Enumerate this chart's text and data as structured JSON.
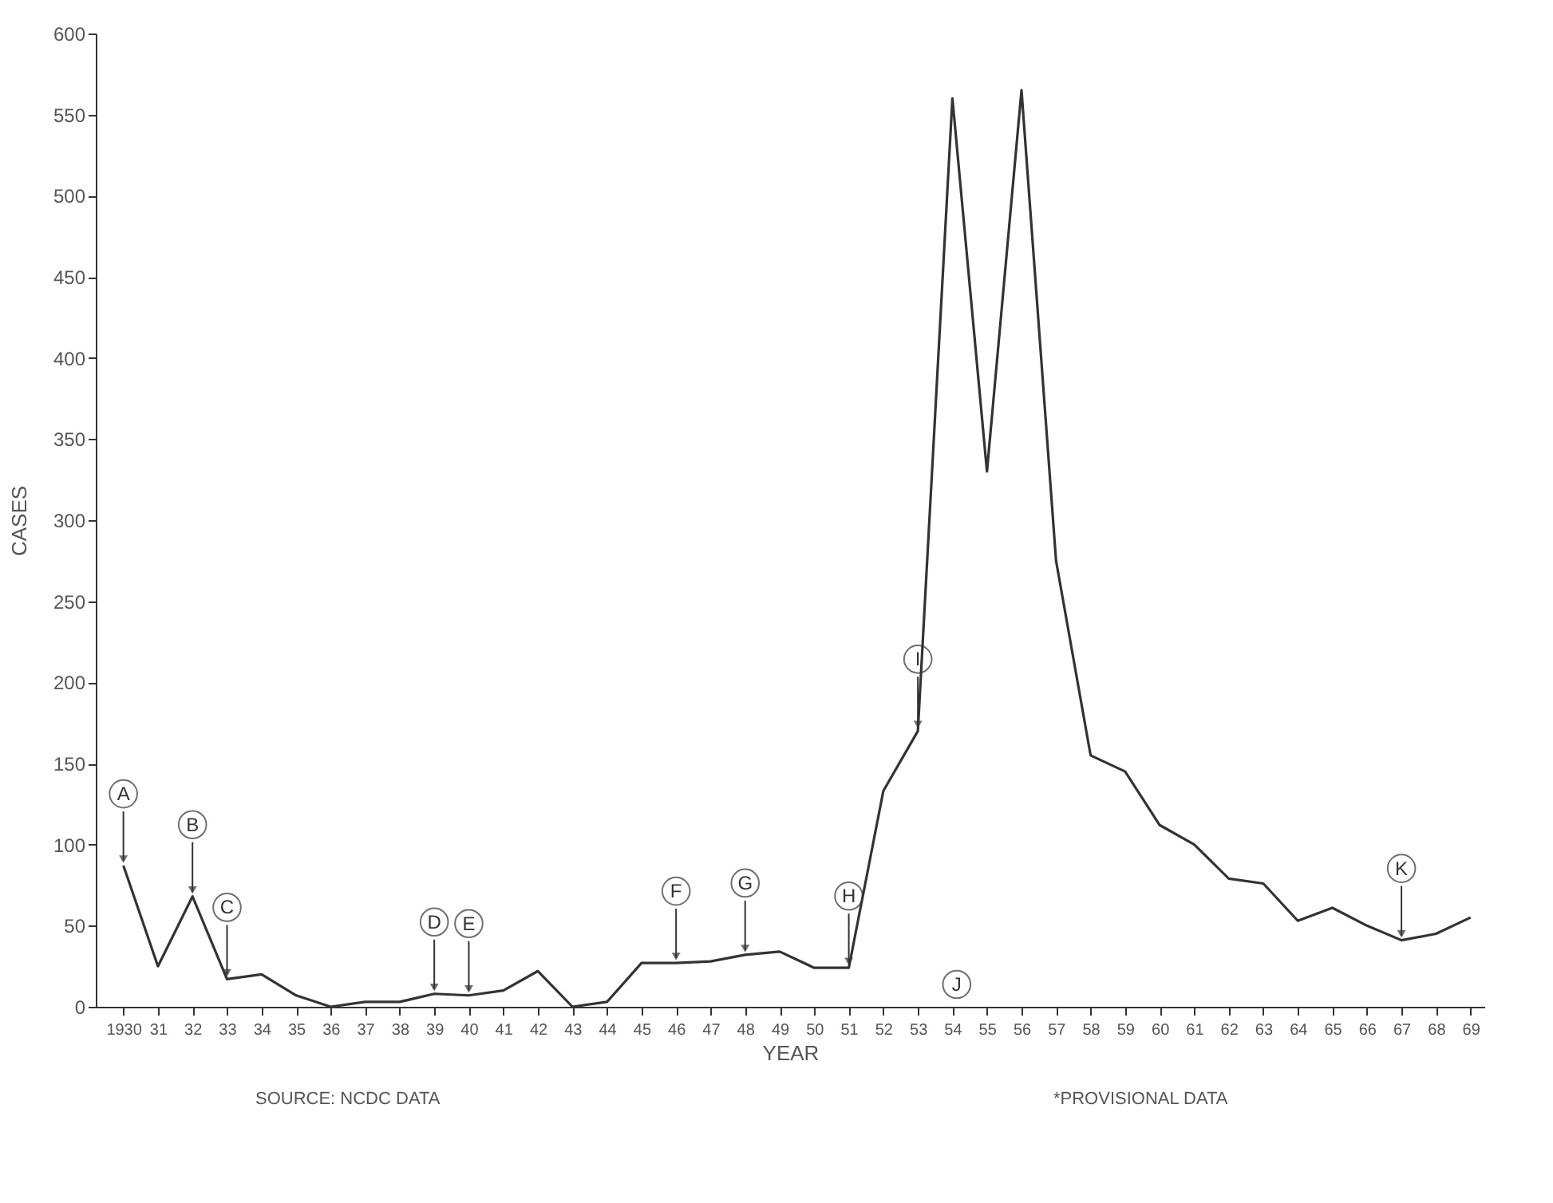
{
  "chart_data": {
    "type": "line",
    "xlabel": "YEAR",
    "ylabel": "CASES",
    "x": [
      1930,
      1931,
      1932,
      1933,
      1934,
      1935,
      1936,
      1937,
      1938,
      1939,
      1940,
      1941,
      1942,
      1943,
      1944,
      1945,
      1946,
      1947,
      1948,
      1949,
      1950,
      1951,
      1952,
      1953,
      1954,
      1955,
      1956,
      1957,
      1958,
      1959,
      1960,
      1961,
      1962,
      1963,
      1964,
      1965,
      1966,
      1967,
      1968,
      1969
    ],
    "series": [
      {
        "color": "#333333",
        "values": [
          87,
          25,
          68,
          17,
          20,
          7,
          0,
          3,
          3,
          8,
          7,
          10,
          22,
          0,
          3,
          27,
          27,
          28,
          32,
          34,
          24,
          24,
          133,
          170,
          560,
          330,
          565,
          275,
          155,
          145,
          112,
          100,
          79,
          76,
          53,
          61,
          50,
          41,
          45,
          55
        ]
      }
    ],
    "xlim": [
      1929.2,
      1969.4
    ],
    "ylim": [
      0,
      600
    ],
    "xticks": [
      {
        "value": 1930,
        "label": "1930"
      },
      {
        "value": 1931,
        "label": "31"
      },
      {
        "value": 1932,
        "label": "32"
      },
      {
        "value": 1933,
        "label": "33"
      },
      {
        "value": 1934,
        "label": "34"
      },
      {
        "value": 1935,
        "label": "35"
      },
      {
        "value": 1936,
        "label": "36"
      },
      {
        "value": 1937,
        "label": "37"
      },
      {
        "value": 1938,
        "label": "38"
      },
      {
        "value": 1939,
        "label": "39"
      },
      {
        "value": 1940,
        "label": "40"
      },
      {
        "value": 1941,
        "label": "41"
      },
      {
        "value": 1942,
        "label": "42"
      },
      {
        "value": 1943,
        "label": "43"
      },
      {
        "value": 1944,
        "label": "44"
      },
      {
        "value": 1945,
        "label": "45"
      },
      {
        "value": 1946,
        "label": "46"
      },
      {
        "value": 1947,
        "label": "47"
      },
      {
        "value": 1948,
        "label": "48"
      },
      {
        "value": 1949,
        "label": "49"
      },
      {
        "value": 1950,
        "label": "50"
      },
      {
        "value": 1951,
        "label": "51"
      },
      {
        "value": 1952,
        "label": "52"
      },
      {
        "value": 1953,
        "label": "53"
      },
      {
        "value": 1954,
        "label": "54"
      },
      {
        "value": 1955,
        "label": "55"
      },
      {
        "value": 1956,
        "label": "56"
      },
      {
        "value": 1957,
        "label": "57"
      },
      {
        "value": 1958,
        "label": "58"
      },
      {
        "value": 1959,
        "label": "59"
      },
      {
        "value": 1960,
        "label": "60"
      },
      {
        "value": 1961,
        "label": "61"
      },
      {
        "value": 1962,
        "label": "62"
      },
      {
        "value": 1963,
        "label": "63"
      },
      {
        "value": 1964,
        "label": "64"
      },
      {
        "value": 1965,
        "label": "65"
      },
      {
        "value": 1966,
        "label": "66"
      },
      {
        "value": 1967,
        "label": "67"
      },
      {
        "value": 1968,
        "label": "68"
      },
      {
        "value": 1969,
        "label": "69"
      }
    ],
    "yticks": [
      0,
      50,
      100,
      150,
      200,
      250,
      300,
      350,
      400,
      450,
      500,
      550,
      600
    ],
    "grid": false,
    "marker": "none",
    "line_style": "solid",
    "annotations": [
      {
        "text": "A",
        "x": 1930,
        "y": 87
      },
      {
        "text": "B",
        "x": 1932,
        "y": 68
      },
      {
        "text": "C",
        "x": 1933,
        "y": 17
      },
      {
        "text": "D",
        "x": 1939,
        "y": 8
      },
      {
        "text": "E",
        "x": 1940,
        "y": 7
      },
      {
        "text": "F",
        "x": 1946,
        "y": 27
      },
      {
        "text": "G",
        "x": 1948,
        "y": 32
      },
      {
        "text": "H",
        "x": 1951,
        "y": 24
      },
      {
        "text": "I",
        "x": 1953,
        "y": 170
      },
      "J",
      {
        "text": "K",
        "x": 1967,
        "y": 41
      },
      "SOURCE: NCDC DATA",
      "*PROVISIONAL DATA"
    ]
  }
}
